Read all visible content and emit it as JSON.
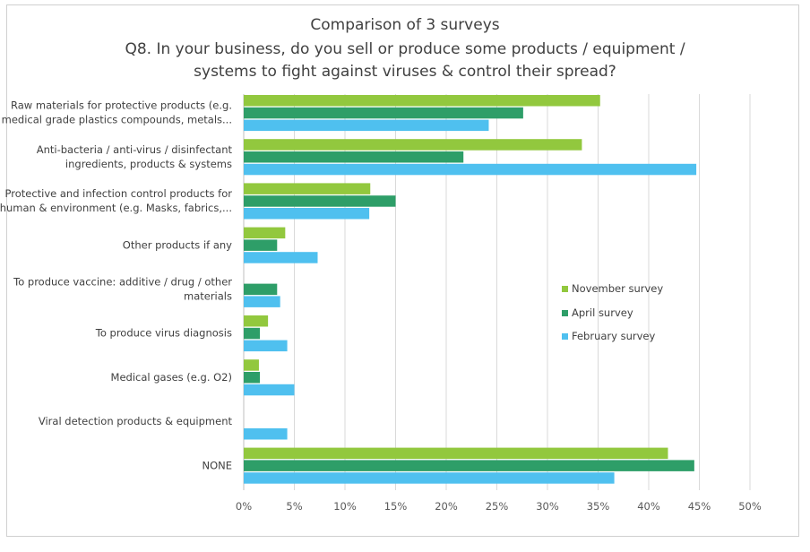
{
  "chart_data": {
    "type": "bar",
    "orientation": "horizontal",
    "title": "Comparison of 3 surveys",
    "subtitle_lines": [
      "Q8. In your business, do you sell or produce some products / equipment /",
      "systems to fight against viruses & control their spread?"
    ],
    "categories": [
      [
        "Raw materials for protective products (e.g.",
        "medical grade plastics compounds, metals..."
      ],
      [
        "Anti-bacteria / anti-virus / disinfectant",
        "ingredients, products & systems"
      ],
      [
        "Protective and infection control products for",
        "human & environment (e.g. Masks, fabrics,..."
      ],
      [
        "Other products if any"
      ],
      [
        "To produce vaccine: additive / drug / other",
        "materials"
      ],
      [
        "To produce virus diagnosis"
      ],
      [
        "Medical gases (e.g. O2)"
      ],
      [
        "Viral detection products & equipment"
      ],
      [
        "NONE"
      ]
    ],
    "series": [
      {
        "name": "November survey",
        "color": "#92c83e",
        "values": [
          35.2,
          33.4,
          12.5,
          4.1,
          0,
          2.4,
          1.5,
          0,
          41.9
        ]
      },
      {
        "name": "April survey",
        "color": "#2e9e68",
        "values": [
          27.6,
          21.7,
          15.0,
          3.3,
          3.3,
          1.6,
          1.6,
          0,
          44.5
        ]
      },
      {
        "name": "February survey",
        "color": "#4fc0ef",
        "values": [
          24.2,
          44.7,
          12.4,
          7.3,
          3.6,
          4.3,
          5.0,
          4.3,
          36.6
        ]
      }
    ],
    "xlim": [
      0,
      50
    ],
    "x_ticks": [
      "0%",
      "5%",
      "10%",
      "15%",
      "20%",
      "25%",
      "30%",
      "35%",
      "40%",
      "45%",
      "50%"
    ],
    "grid": true,
    "legend_position": "right"
  }
}
